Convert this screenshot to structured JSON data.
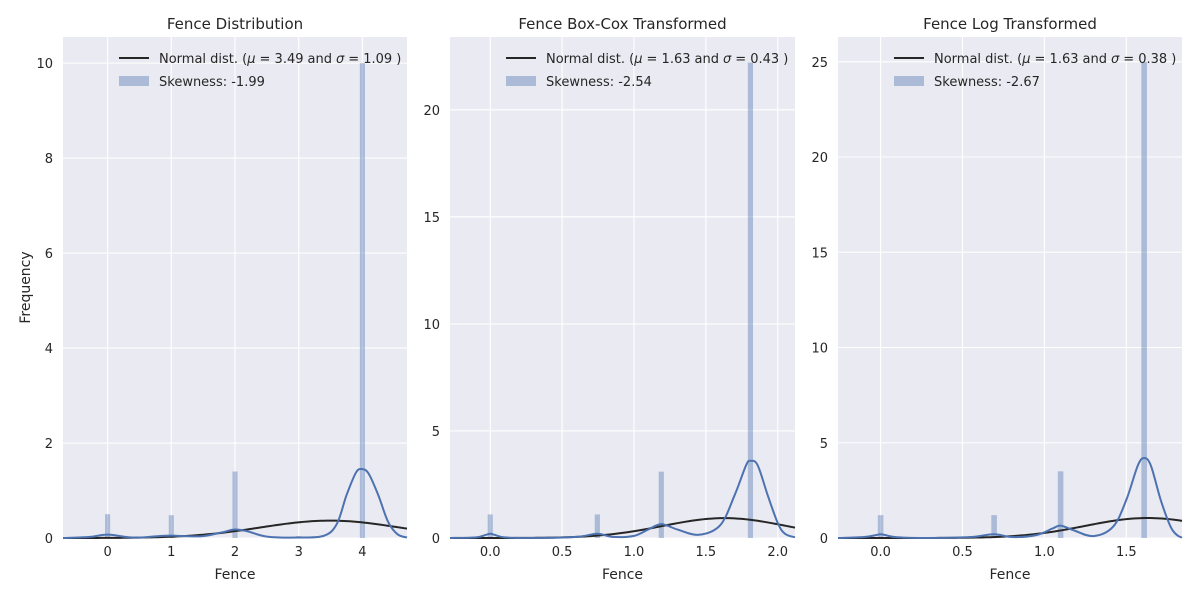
{
  "chart_data": [
    {
      "type": "histogram",
      "title": "Fence Distribution",
      "xlabel": "Fence",
      "ylabel": "Frequency",
      "xlim": [
        -0.7,
        4.7
      ],
      "ylim": [
        0,
        10.55
      ],
      "xticks": [
        0,
        1,
        2,
        3,
        4
      ],
      "xtick_labels": [
        "0",
        "1",
        "2",
        "3",
        "4"
      ],
      "yticks": [
        0,
        2,
        4,
        6,
        8,
        10
      ],
      "ytick_labels": [
        "0",
        "2",
        "4",
        "6",
        "8",
        "10"
      ],
      "bar_width": 0.08,
      "bars": [
        {
          "x": 0.0,
          "height": 0.5
        },
        {
          "x": 1.0,
          "height": 0.48
        },
        {
          "x": 2.0,
          "height": 1.4
        },
        {
          "x": 3.0,
          "height": 0.04
        },
        {
          "x": 4.0,
          "height": 10.0
        }
      ],
      "kde": [
        [
          -0.7,
          0
        ],
        [
          -0.3,
          0.02
        ],
        [
          -0.1,
          0.06
        ],
        [
          0,
          0.07
        ],
        [
          0.1,
          0.06
        ],
        [
          0.3,
          0.02
        ],
        [
          0.5,
          0.01
        ],
        [
          0.8,
          0.04
        ],
        [
          1,
          0.05
        ],
        [
          1.2,
          0.04
        ],
        [
          1.5,
          0.04
        ],
        [
          1.8,
          0.12
        ],
        [
          2,
          0.18
        ],
        [
          2.2,
          0.14
        ],
        [
          2.5,
          0.03
        ],
        [
          3,
          0.01
        ],
        [
          3.4,
          0.05
        ],
        [
          3.6,
          0.3
        ],
        [
          3.75,
          0.9
        ],
        [
          3.9,
          1.38
        ],
        [
          4,
          1.45
        ],
        [
          4.1,
          1.35
        ],
        [
          4.25,
          0.9
        ],
        [
          4.4,
          0.35
        ],
        [
          4.55,
          0.08
        ],
        [
          4.7,
          0.01
        ]
      ],
      "normal_fit": {
        "mu": 3.49,
        "sigma": 1.09,
        "x_range": [
          -0.7,
          4.7
        ]
      },
      "legend": {
        "placement": "top-right",
        "line_label": {
          "prefix": "Normal dist. (",
          "mu_label": "μ",
          "mu_value": "= 3.49",
          "and": "and",
          "sigma_label": "σ",
          "sigma_value": "= 1.09",
          "suffix": ")"
        },
        "patch_label": "Skewness: -1.99"
      }
    },
    {
      "type": "histogram",
      "title": "Fence Box-Cox Transformed",
      "xlabel": "Fence",
      "ylabel": "",
      "xlim": [
        -0.28,
        2.12
      ],
      "ylim": [
        0,
        23.4
      ],
      "xticks": [
        0.0,
        0.5,
        1.0,
        1.5,
        2.0
      ],
      "xtick_labels": [
        "0.0",
        "0.5",
        "1.0",
        "1.5",
        "2.0"
      ],
      "yticks": [
        0,
        5,
        10,
        15,
        20
      ],
      "ytick_labels": [
        "0",
        "5",
        "10",
        "15",
        "20"
      ],
      "bar_width": 0.036,
      "bars": [
        {
          "x": 0.0,
          "height": 1.1
        },
        {
          "x": 0.745,
          "height": 1.1
        },
        {
          "x": 1.19,
          "height": 3.1
        },
        {
          "x": 1.81,
          "height": 22.2
        }
      ],
      "kde": [
        [
          -0.28,
          0
        ],
        [
          -0.1,
          0.03
        ],
        [
          -0.03,
          0.15
        ],
        [
          0,
          0.2
        ],
        [
          0.03,
          0.15
        ],
        [
          0.1,
          0.03
        ],
        [
          0.3,
          0
        ],
        [
          0.6,
          0.05
        ],
        [
          0.745,
          0.2
        ],
        [
          0.85,
          0.05
        ],
        [
          1,
          0.1
        ],
        [
          1.1,
          0.4
        ],
        [
          1.19,
          0.65
        ],
        [
          1.3,
          0.4
        ],
        [
          1.45,
          0.15
        ],
        [
          1.6,
          0.6
        ],
        [
          1.7,
          2
        ],
        [
          1.78,
          3.4
        ],
        [
          1.81,
          3.6
        ],
        [
          1.86,
          3.4
        ],
        [
          1.93,
          2
        ],
        [
          2.0,
          0.7
        ],
        [
          2.05,
          0.2
        ],
        [
          2.12,
          0.03
        ]
      ],
      "normal_fit": {
        "mu": 1.63,
        "sigma": 0.43,
        "x_range": [
          -0.28,
          2.12
        ]
      },
      "legend": {
        "placement": "top-right",
        "line_label": {
          "prefix": "Normal dist. (",
          "mu_label": "μ",
          "mu_value": "= 1.63",
          "and": "and",
          "sigma_label": "σ",
          "sigma_value": "= 0.43",
          "suffix": ")"
        },
        "patch_label": "Skewness: -2.54"
      }
    },
    {
      "type": "histogram",
      "title": "Fence Log Transformed",
      "xlabel": "Fence",
      "ylabel": "",
      "xlim": [
        -0.26,
        1.84
      ],
      "ylim": [
        0,
        26.3
      ],
      "xticks": [
        0.0,
        0.5,
        1.0,
        1.5
      ],
      "xtick_labels": [
        "0.0",
        "0.5",
        "1.0",
        "1.5"
      ],
      "yticks": [
        0,
        5,
        10,
        15,
        20,
        25
      ],
      "ytick_labels": [
        "0",
        "5",
        "10",
        "15",
        "20",
        "25"
      ],
      "bar_width": 0.034,
      "bars": [
        {
          "x": 0.0,
          "height": 1.2
        },
        {
          "x": 0.693,
          "height": 1.2
        },
        {
          "x": 1.099,
          "height": 3.5
        },
        {
          "x": 1.609,
          "height": 25.0
        }
      ],
      "kde": [
        [
          -0.26,
          0
        ],
        [
          -0.1,
          0.05
        ],
        [
          -0.03,
          0.15
        ],
        [
          0,
          0.2
        ],
        [
          0.03,
          0.15
        ],
        [
          0.1,
          0.04
        ],
        [
          0.3,
          0
        ],
        [
          0.55,
          0.05
        ],
        [
          0.693,
          0.2
        ],
        [
          0.8,
          0.05
        ],
        [
          0.95,
          0.15
        ],
        [
          1.05,
          0.5
        ],
        [
          1.099,
          0.65
        ],
        [
          1.18,
          0.4
        ],
        [
          1.3,
          0.1
        ],
        [
          1.42,
          0.6
        ],
        [
          1.5,
          2
        ],
        [
          1.57,
          3.8
        ],
        [
          1.609,
          4.2
        ],
        [
          1.65,
          3.8
        ],
        [
          1.71,
          2
        ],
        [
          1.77,
          0.6
        ],
        [
          1.81,
          0.15
        ],
        [
          1.84,
          0.02
        ]
      ],
      "normal_fit": {
        "mu": 1.63,
        "sigma": 0.38,
        "x_range": [
          -0.26,
          1.84
        ]
      },
      "legend": {
        "placement": "top-right",
        "line_label": {
          "prefix": "Normal dist. (",
          "mu_label": "μ",
          "mu_value": "= 1.63",
          "and": "and",
          "sigma_label": "σ",
          "sigma_value": "= 0.38",
          "suffix": ")"
        },
        "patch_label": "Skewness: -2.67"
      }
    }
  ],
  "colors": {
    "bar_fill": "#4c72b0",
    "bar_opacity": "0.4",
    "kde_line": "#4c72b0",
    "normal_line": "#262626",
    "plot_background": "#eaeaf2",
    "grid": "#ffffff"
  }
}
